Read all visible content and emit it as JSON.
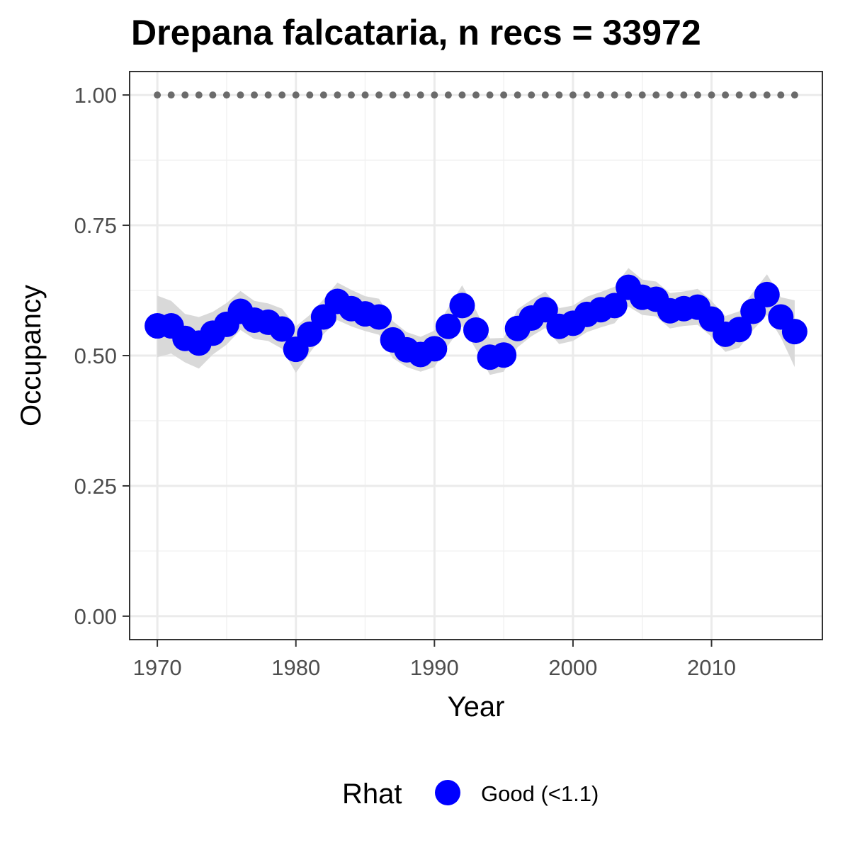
{
  "chart_data": {
    "type": "line",
    "title": "Drepana falcataria, n recs = 33972",
    "xlabel": "Year",
    "ylabel": "Occupancy",
    "xlim": [
      1968,
      2018
    ],
    "ylim": [
      -0.045,
      1.045
    ],
    "x_ticks": [
      1970,
      1980,
      1990,
      2000,
      2010
    ],
    "x_tick_labels": [
      "1970",
      "1980",
      "1990",
      "2000",
      "2010"
    ],
    "y_ticks": [
      0,
      0.25,
      0.5,
      0.75,
      1.0
    ],
    "y_tick_labels": [
      "0.00",
      "0.25",
      "0.50",
      "0.75",
      "1.00"
    ],
    "grid": true,
    "legend": {
      "title": "Rhat",
      "position": "bottom",
      "entries": [
        {
          "label": "Good (<1.1)",
          "color": "#0000ff"
        }
      ]
    },
    "colors": {
      "points": "#0000ff",
      "ribbon": "#d9d9d9",
      "reference": "#6b6b6b"
    },
    "reference_line": {
      "x": [
        1970,
        1971,
        1972,
        1973,
        1974,
        1975,
        1976,
        1977,
        1978,
        1979,
        1980,
        1981,
        1982,
        1983,
        1984,
        1985,
        1986,
        1987,
        1988,
        1989,
        1990,
        1991,
        1992,
        1993,
        1994,
        1995,
        1996,
        1997,
        1998,
        1999,
        2000,
        2001,
        2002,
        2003,
        2004,
        2005,
        2006,
        2007,
        2008,
        2009,
        2010,
        2011,
        2012,
        2013,
        2014,
        2015,
        2016
      ],
      "y": [
        1,
        1,
        1,
        1,
        1,
        1,
        1,
        1,
        1,
        1,
        1,
        1,
        1,
        1,
        1,
        1,
        1,
        1,
        1,
        1,
        1,
        1,
        1,
        1,
        1,
        1,
        1,
        1,
        1,
        1,
        1,
        1,
        1,
        1,
        1,
        1,
        1,
        1,
        1,
        1,
        1,
        1,
        1,
        1,
        1,
        1,
        1
      ]
    },
    "series": [
      {
        "x": [
          1970,
          1971,
          1972,
          1973,
          1974,
          1975,
          1976,
          1977,
          1978,
          1979,
          1980,
          1981,
          1982,
          1983,
          1984,
          1985,
          1986,
          1987,
          1988,
          1989,
          1990,
          1991,
          1992,
          1993,
          1994,
          1995,
          1996,
          1997,
          1998,
          1999,
          2000,
          2001,
          2002,
          2003,
          2004,
          2005,
          2006,
          2007,
          2008,
          2009,
          2010,
          2011,
          2012,
          2013,
          2014,
          2015,
          2016
        ],
        "y": [
          0.557,
          0.557,
          0.533,
          0.524,
          0.543,
          0.56,
          0.585,
          0.568,
          0.564,
          0.551,
          0.512,
          0.541,
          0.574,
          0.604,
          0.59,
          0.58,
          0.574,
          0.53,
          0.511,
          0.502,
          0.513,
          0.556,
          0.596,
          0.549,
          0.497,
          0.501,
          0.552,
          0.572,
          0.588,
          0.556,
          0.562,
          0.579,
          0.588,
          0.596,
          0.631,
          0.612,
          0.608,
          0.586,
          0.59,
          0.593,
          0.57,
          0.541,
          0.55,
          0.585,
          0.617,
          0.574,
          0.546
        ],
        "lower": [
          0.497,
          0.504,
          0.487,
          0.475,
          0.502,
          0.521,
          0.549,
          0.532,
          0.528,
          0.513,
          0.467,
          0.505,
          0.541,
          0.568,
          0.556,
          0.547,
          0.54,
          0.495,
          0.478,
          0.469,
          0.478,
          0.52,
          0.557,
          0.512,
          0.463,
          0.469,
          0.516,
          0.537,
          0.553,
          0.522,
          0.528,
          0.545,
          0.554,
          0.562,
          0.594,
          0.578,
          0.575,
          0.552,
          0.557,
          0.559,
          0.536,
          0.507,
          0.515,
          0.549,
          0.578,
          0.535,
          0.478
        ],
        "upper": [
          0.615,
          0.605,
          0.58,
          0.574,
          0.584,
          0.601,
          0.624,
          0.605,
          0.6,
          0.59,
          0.556,
          0.578,
          0.608,
          0.64,
          0.626,
          0.614,
          0.609,
          0.566,
          0.545,
          0.536,
          0.548,
          0.592,
          0.635,
          0.587,
          0.533,
          0.534,
          0.589,
          0.607,
          0.623,
          0.591,
          0.596,
          0.613,
          0.622,
          0.632,
          0.668,
          0.646,
          0.642,
          0.62,
          0.623,
          0.628,
          0.605,
          0.576,
          0.585,
          0.622,
          0.656,
          0.612,
          0.606
        ]
      }
    ]
  }
}
